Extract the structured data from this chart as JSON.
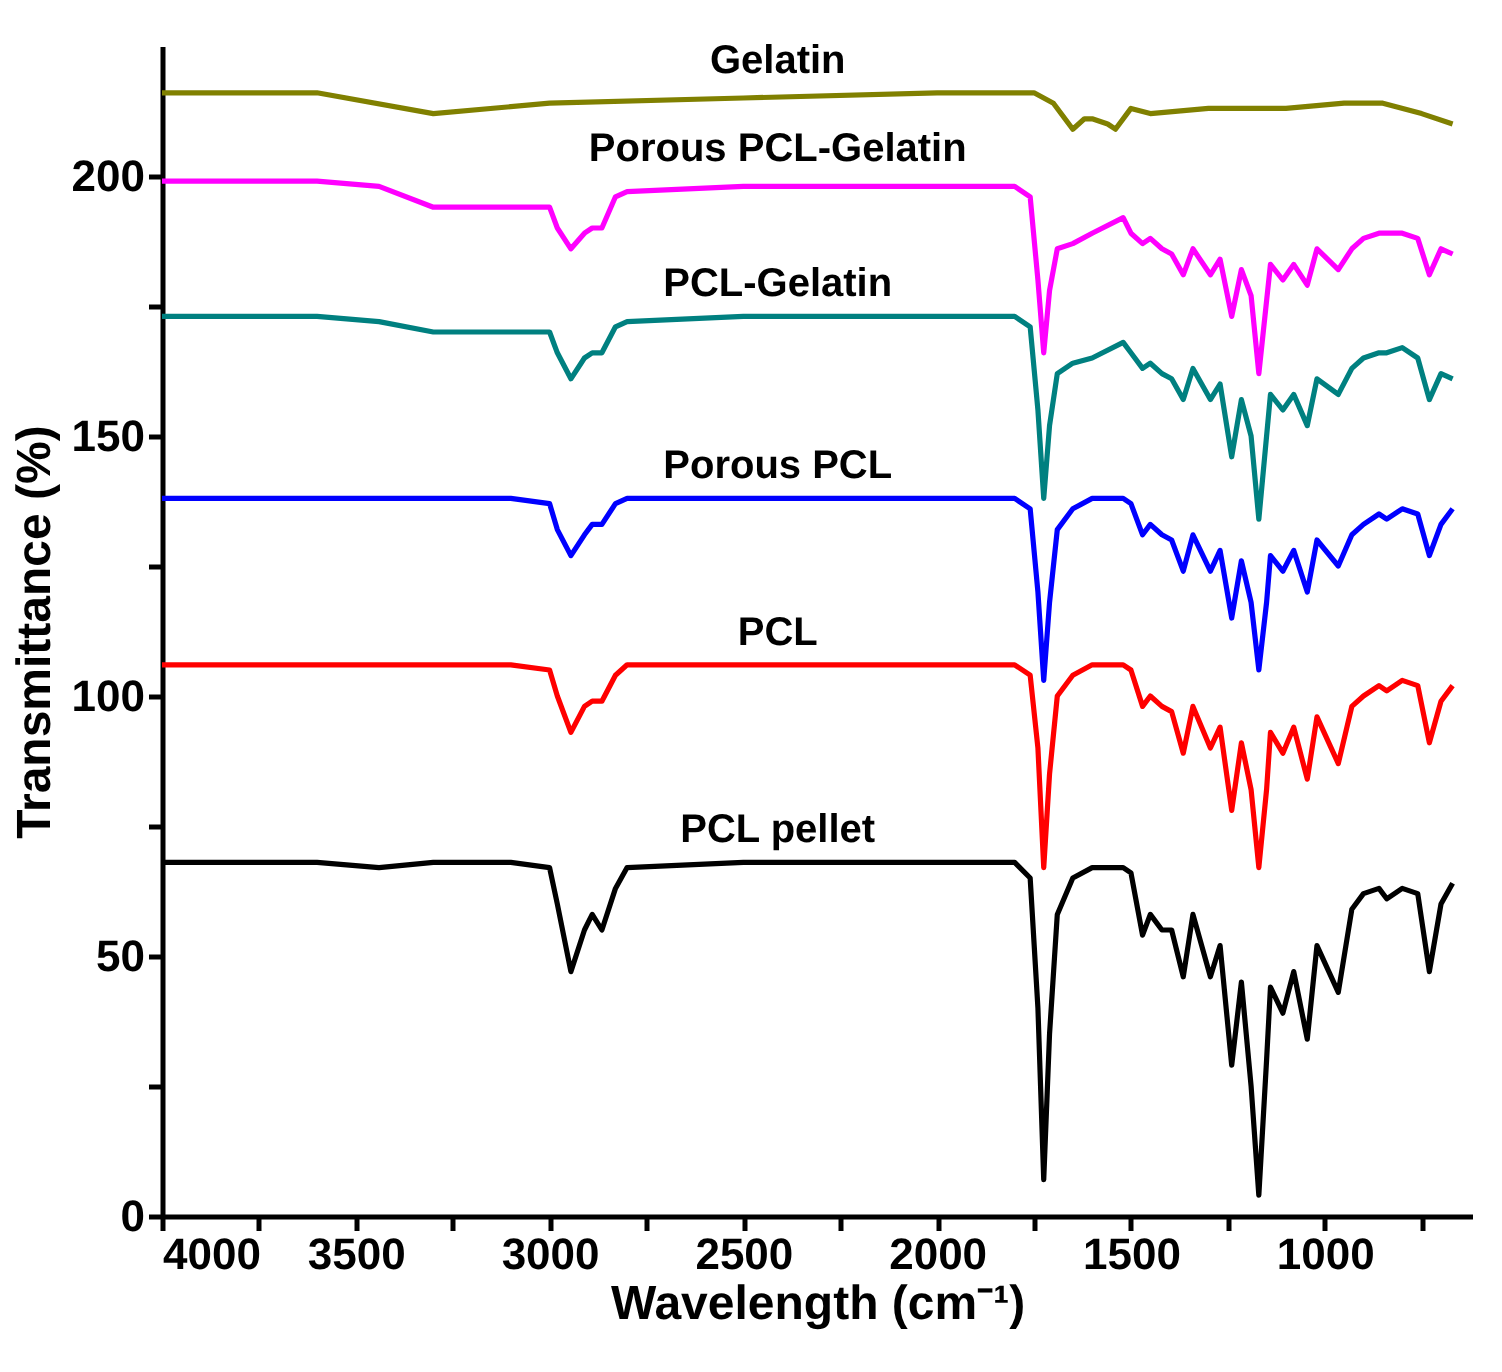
{
  "chart_data": {
    "type": "line",
    "xlabel": "Wavelength (cm⁻¹)",
    "ylabel": "Transmittance (%)",
    "xlim": [
      4000,
      620
    ],
    "ylim": [
      0,
      225
    ],
    "xticks": [
      4000,
      {
        "value": 3750,
        "label": null
      },
      3500,
      {
        "value": 3250,
        "label": null
      },
      3000,
      {
        "value": 2750,
        "label": null
      },
      2500,
      {
        "value": 2250,
        "label": null
      },
      2000,
      {
        "value": 1750,
        "label": null
      },
      1500,
      {
        "value": 1250,
        "label": null
      },
      1000,
      {
        "value": 750,
        "label": null
      }
    ],
    "yticks": [
      0,
      {
        "value": 25,
        "label": null
      },
      50,
      {
        "value": 75,
        "label": null
      },
      100,
      {
        "value": 125,
        "label": null
      },
      150,
      {
        "value": 175,
        "label": null
      },
      200
    ],
    "grid": false,
    "marker": "none",
    "line_style": "solid",
    "x": [
      4000,
      3600,
      3440,
      3300,
      3100,
      3000,
      2980,
      2945,
      2910,
      2890,
      2865,
      2830,
      2800,
      2500,
      2000,
      1800,
      1760,
      1740,
      1725,
      1710,
      1690,
      1650,
      1600,
      1520,
      1500,
      1470,
      1450,
      1420,
      1395,
      1365,
      1340,
      1295,
      1270,
      1240,
      1215,
      1190,
      1170,
      1150,
      1140,
      1108,
      1080,
      1045,
      1020,
      965,
      930,
      900,
      860,
      840,
      800,
      760,
      730,
      700,
      670
    ],
    "series": [
      {
        "name": "Gelatin",
        "color": "#808000",
        "x": [
          4000,
          3600,
          3300,
          3000,
          2500,
          2000,
          1750,
          1700,
          1650,
          1620,
          1600,
          1560,
          1540,
          1500,
          1450,
          1300,
          1100,
          950,
          850,
          750,
          670
        ],
        "values": [
          216,
          216,
          212,
          214,
          215,
          216,
          216,
          214,
          209,
          211,
          211,
          210,
          209,
          213,
          212,
          213,
          213,
          214,
          214,
          212,
          210
        ]
      },
      {
        "name": "Porous PCL-Gelatin",
        "color": "#ff00ff",
        "values": [
          199,
          199,
          198,
          194,
          194,
          194,
          190,
          186,
          189,
          190,
          190,
          196,
          197,
          198,
          198,
          198,
          196,
          180,
          166,
          178,
          186,
          187,
          189,
          192,
          189,
          187,
          188,
          186,
          185,
          181,
          186,
          181,
          184,
          173,
          182,
          177,
          162,
          176,
          183,
          180,
          183,
          179,
          186,
          182,
          186,
          188,
          189,
          189,
          189,
          188,
          181,
          186,
          185
        ]
      },
      {
        "name": "PCL-Gelatin",
        "color": "#008080",
        "values": [
          173,
          173,
          172,
          170,
          170,
          170,
          166,
          161,
          165,
          166,
          166,
          171,
          172,
          173,
          173,
          173,
          171,
          155,
          138,
          152,
          162,
          164,
          165,
          168,
          166,
          163,
          164,
          162,
          161,
          157,
          163,
          157,
          160,
          146,
          157,
          150,
          134,
          150,
          158,
          155,
          158,
          152,
          161,
          158,
          163,
          165,
          166,
          166,
          167,
          165,
          157,
          162,
          161
        ]
      },
      {
        "name": "Porous PCL",
        "color": "#0000ff",
        "values": [
          138,
          138,
          138,
          138,
          138,
          137,
          132,
          127,
          131,
          133,
          133,
          137,
          138,
          138,
          138,
          138,
          136,
          120,
          103,
          118,
          132,
          136,
          138,
          138,
          137,
          131,
          133,
          131,
          130,
          124,
          131,
          124,
          128,
          115,
          126,
          118,
          105,
          118,
          127,
          124,
          128,
          120,
          130,
          125,
          131,
          133,
          135,
          134,
          136,
          135,
          127,
          133,
          136
        ]
      },
      {
        "name": "PCL",
        "color": "#ff0000",
        "values": [
          106,
          106,
          106,
          106,
          106,
          105,
          100,
          93,
          98,
          99,
          99,
          104,
          106,
          106,
          106,
          106,
          104,
          90,
          67,
          85,
          100,
          104,
          106,
          106,
          105,
          98,
          100,
          98,
          97,
          89,
          98,
          90,
          94,
          78,
          91,
          82,
          67,
          82,
          93,
          89,
          94,
          84,
          96,
          87,
          98,
          100,
          102,
          101,
          103,
          102,
          91,
          99,
          102
        ]
      },
      {
        "name": "PCL pellet",
        "color": "#000000",
        "values": [
          68,
          68,
          67,
          68,
          68,
          67,
          60,
          47,
          55,
          58,
          55,
          63,
          67,
          68,
          68,
          68,
          65,
          40,
          7,
          35,
          58,
          65,
          67,
          67,
          66,
          54,
          58,
          55,
          55,
          46,
          58,
          46,
          52,
          29,
          45,
          25,
          4,
          30,
          44,
          39,
          47,
          34,
          52,
          43,
          59,
          62,
          63,
          61,
          63,
          62,
          47,
          60,
          64
        ]
      }
    ]
  }
}
